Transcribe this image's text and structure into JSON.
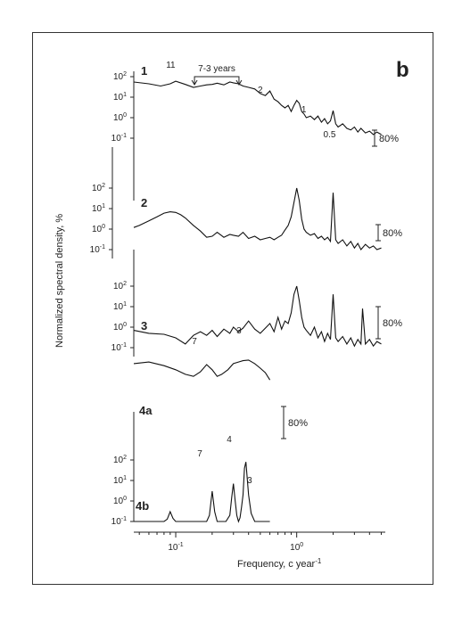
{
  "chart_data": {
    "type": "line",
    "panel_letter": "b",
    "xlabel": "Frequency, c year",
    "xlabel_sup": "-1",
    "ylabel": "Normalized spectral density, %",
    "x_scale": "log",
    "x_ticks": [
      {
        "base": "10",
        "exp": "-1",
        "value": 0.1
      },
      {
        "base": "10",
        "exp": "0",
        "value": 1
      }
    ],
    "y_scale": "log",
    "y_tick_values": [
      0.1,
      1,
      10,
      100
    ],
    "period_bracket": {
      "label": "7-3 years",
      "from": 0.1429,
      "to": 0.3333
    },
    "confidence_label": "80%",
    "series": [
      {
        "name": "1",
        "x": [
          0.045,
          0.06,
          0.075,
          0.09,
          0.1,
          0.12,
          0.14,
          0.16,
          0.18,
          0.2,
          0.22,
          0.25,
          0.28,
          0.3,
          0.33,
          0.36,
          0.4,
          0.45,
          0.5,
          0.55,
          0.6,
          0.65,
          0.7,
          0.75,
          0.8,
          0.85,
          0.9,
          0.95,
          1.0,
          1.05,
          1.1,
          1.15,
          1.2,
          1.3,
          1.4,
          1.5,
          1.6,
          1.7,
          1.8,
          1.9,
          2.0,
          2.1,
          2.2,
          2.4,
          2.6,
          2.8,
          3.0,
          3.2,
          3.4,
          3.7,
          4.0,
          4.3,
          4.6,
          5.0
        ],
        "values": [
          55,
          45,
          35,
          45,
          60,
          42,
          30,
          35,
          40,
          42,
          48,
          40,
          55,
          50,
          45,
          35,
          30,
          25,
          15,
          12,
          20,
          8,
          6,
          4,
          3,
          4,
          2,
          4,
          7,
          5,
          2,
          1.5,
          1,
          1.2,
          0.8,
          1.2,
          0.6,
          0.9,
          0.5,
          0.7,
          2.2,
          0.5,
          0.35,
          0.5,
          0.3,
          0.25,
          0.35,
          0.2,
          0.3,
          0.18,
          0.22,
          0.15,
          0.2,
          0.15
        ],
        "annotations": [
          {
            "text": "11",
            "x": 0.0909
          },
          {
            "text": "2",
            "x": 0.5
          },
          {
            "text": "1",
            "x": 1.0
          },
          {
            "text": "0.5",
            "x": 2.0
          }
        ]
      },
      {
        "name": "2",
        "x": [
          0.045,
          0.05,
          0.06,
          0.07,
          0.08,
          0.09,
          0.1,
          0.11,
          0.12,
          0.14,
          0.16,
          0.18,
          0.2,
          0.22,
          0.25,
          0.28,
          0.3,
          0.33,
          0.36,
          0.4,
          0.45,
          0.5,
          0.55,
          0.6,
          0.65,
          0.7,
          0.75,
          0.8,
          0.85,
          0.9,
          0.95,
          1.0,
          1.05,
          1.1,
          1.15,
          1.2,
          1.3,
          1.4,
          1.5,
          1.6,
          1.7,
          1.8,
          1.9,
          2.0,
          2.1,
          2.2,
          2.4,
          2.6,
          2.8,
          3.0,
          3.2,
          3.4,
          3.7,
          4.0,
          4.3,
          4.6,
          5.0
        ],
        "values": [
          1.2,
          1.5,
          2.5,
          4,
          6,
          7,
          6.5,
          5,
          3.5,
          1.5,
          0.8,
          0.4,
          0.45,
          0.7,
          0.4,
          0.55,
          0.5,
          0.45,
          0.7,
          0.35,
          0.45,
          0.3,
          0.35,
          0.4,
          0.3,
          0.4,
          0.5,
          0.9,
          1.5,
          4,
          20,
          100,
          25,
          3,
          1,
          0.7,
          0.5,
          0.6,
          0.35,
          0.45,
          0.3,
          0.4,
          0.25,
          60,
          0.3,
          0.2,
          0.3,
          0.15,
          0.25,
          0.12,
          0.2,
          0.1,
          0.18,
          0.12,
          0.15,
          0.1,
          0.12
        ]
      },
      {
        "name": "3",
        "x": [
          0.045,
          0.06,
          0.08,
          0.1,
          0.12,
          0.14,
          0.16,
          0.18,
          0.2,
          0.22,
          0.25,
          0.28,
          0.3,
          0.33,
          0.36,
          0.4,
          0.45,
          0.5,
          0.55,
          0.6,
          0.65,
          0.7,
          0.75,
          0.8,
          0.85,
          0.9,
          0.95,
          1.0,
          1.05,
          1.1,
          1.15,
          1.2,
          1.3,
          1.4,
          1.5,
          1.6,
          1.7,
          1.8,
          1.9,
          2.0,
          2.1,
          2.2,
          2.4,
          2.6,
          2.8,
          3.0,
          3.2,
          3.4,
          3.5,
          3.7,
          4.0,
          4.3,
          4.6,
          5.0
        ],
        "values": [
          0.7,
          0.5,
          0.45,
          0.3,
          0.15,
          0.4,
          0.6,
          0.4,
          0.7,
          0.35,
          0.8,
          0.5,
          1.0,
          0.6,
          0.9,
          2.0,
          0.8,
          0.5,
          0.9,
          1.5,
          0.6,
          3,
          0.8,
          2,
          1.5,
          5,
          40,
          100,
          20,
          3,
          1,
          0.7,
          0.4,
          1.0,
          0.3,
          0.6,
          0.2,
          0.5,
          0.25,
          40,
          0.3,
          0.2,
          0.35,
          0.15,
          0.3,
          0.12,
          0.25,
          0.15,
          8,
          0.15,
          0.25,
          0.12,
          0.2,
          0.15
        ],
        "annotations": [
          {
            "text": "7",
            "x": 0.1429
          },
          {
            "text": "3",
            "x": 0.3333
          }
        ]
      },
      {
        "name": "4a",
        "x": [
          0.045,
          0.06,
          0.08,
          0.1,
          0.12,
          0.14,
          0.16,
          0.18,
          0.2,
          0.22,
          0.24,
          0.27,
          0.3,
          0.33,
          0.36,
          0.4,
          0.45,
          0.5,
          0.55,
          0.6
        ],
        "values": [
          50,
          60,
          40,
          25,
          15,
          12,
          20,
          45,
          25,
          12,
          15,
          25,
          50,
          60,
          70,
          75,
          50,
          30,
          18,
          8
        ]
      },
      {
        "name": "4b",
        "x": [
          0.045,
          0.06,
          0.08,
          0.085,
          0.09,
          0.095,
          0.1,
          0.12,
          0.14,
          0.16,
          0.18,
          0.19,
          0.2,
          0.21,
          0.22,
          0.24,
          0.26,
          0.28,
          0.29,
          0.3,
          0.31,
          0.32,
          0.33,
          0.34,
          0.35,
          0.36,
          0.37,
          0.38,
          0.4,
          0.42,
          0.45,
          0.5,
          0.55,
          0.6
        ],
        "values": [
          0.1,
          0.1,
          0.1,
          0.13,
          0.3,
          0.14,
          0.1,
          0.1,
          0.1,
          0.1,
          0.1,
          0.2,
          3.0,
          0.3,
          0.1,
          0.1,
          0.1,
          0.2,
          1.5,
          7,
          1.0,
          0.2,
          0.1,
          0.15,
          0.5,
          2,
          40,
          80,
          2,
          0.25,
          0.1,
          0.1,
          0.1,
          0.1
        ],
        "annotations": [
          {
            "text": "7",
            "x": 0.1429
          },
          {
            "text": "4",
            "x": 0.25
          },
          {
            "text": "3",
            "x": 0.3333
          }
        ]
      }
    ]
  }
}
